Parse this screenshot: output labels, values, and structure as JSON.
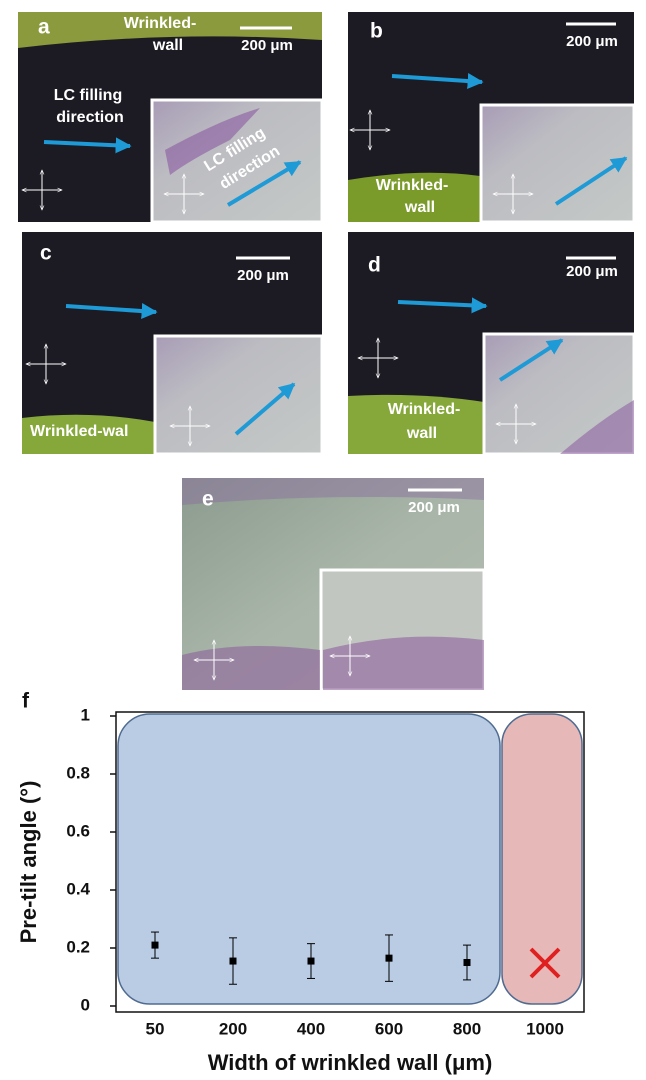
{
  "panels": [
    {
      "label": "a",
      "wall_label": [
        "Wrinkled-",
        "wall"
      ],
      "scale_bar": "200 μm",
      "direction_label": [
        "LC filling",
        "direction"
      ],
      "inset_direction_label": [
        "LC filling",
        "direction"
      ]
    },
    {
      "label": "b",
      "scale_bar": "200 μm",
      "wall_label": [
        "Wrinkled-",
        "wall"
      ]
    },
    {
      "label": "c",
      "scale_bar": "200 μm",
      "wall_label": [
        "Wrinkled-wal"
      ]
    },
    {
      "label": "d",
      "scale_bar": "200 μm",
      "wall_label": [
        "Wrinkled-",
        "wall"
      ]
    },
    {
      "label": "e",
      "scale_bar": "200 μm"
    }
  ],
  "panel_f_label": "f",
  "chart_data": {
    "type": "scatter",
    "y_label": "Pre-tilt angle (°)",
    "x_label": "Width of wrinkled wall (μm)",
    "categories": [
      "50",
      "200",
      "400",
      "600",
      "800",
      "1000"
    ],
    "values": [
      0.21,
      0.155,
      0.155,
      0.165,
      0.15,
      null
    ],
    "errors": [
      0.045,
      0.08,
      0.06,
      0.08,
      0.06,
      null
    ],
    "color": "#000000",
    "ylim": [
      0,
      1
    ],
    "yticks": [
      0,
      0.2,
      0.4,
      0.6,
      0.8,
      1
    ]
  }
}
